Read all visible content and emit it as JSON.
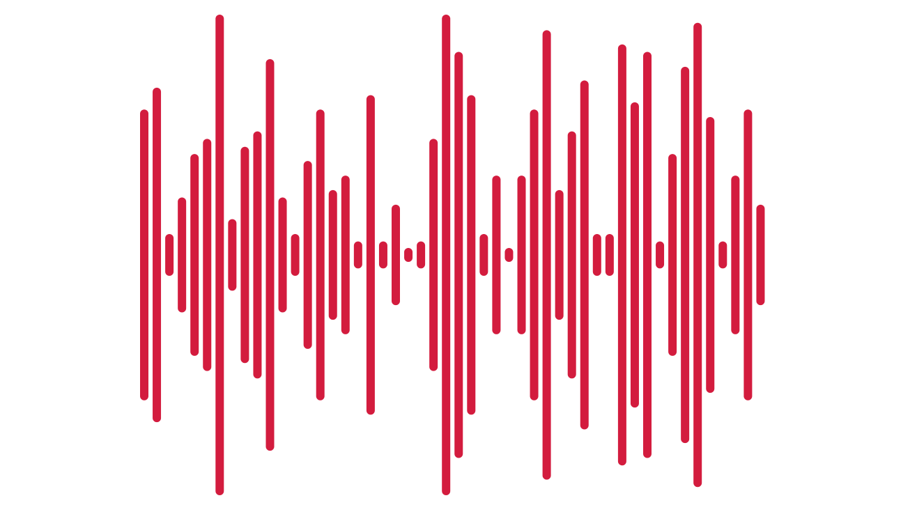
{
  "graphic": {
    "icon": "audio-waveform-icon",
    "color": "#D31C3E",
    "background": "#FFFFFF",
    "bar_levels": [
      0.605,
      0.696,
      0.087,
      0.239,
      0.42,
      0.483,
      1.0,
      0.149,
      0.45,
      0.514,
      0.815,
      0.239,
      0.087,
      0.391,
      0.605,
      0.27,
      0.33,
      0.056,
      0.665,
      0.056,
      0.209,
      0.026,
      0.056,
      0.483,
      1.0,
      0.845,
      0.665,
      0.087,
      0.33,
      0.026,
      0.33,
      0.605,
      0.935,
      0.27,
      0.514,
      0.726,
      0.087,
      0.087,
      0.876,
      0.635,
      0.845,
      0.056,
      0.42,
      0.783,
      0.966,
      0.574,
      0.056,
      0.33,
      0.605,
      0.209
    ]
  }
}
